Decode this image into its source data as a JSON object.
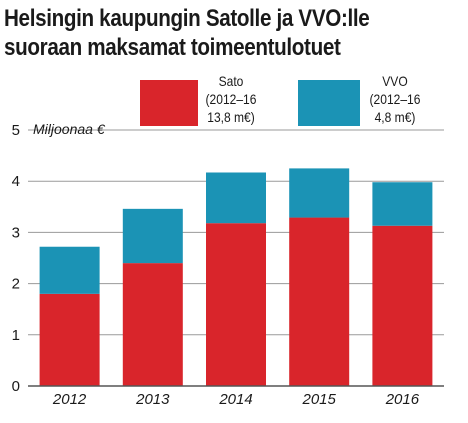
{
  "title_lines": [
    "Helsingin kaupungin Satolle ja VVO:lle",
    "suoraan maksamat toimeentulotuet"
  ],
  "colors": {
    "sato": "#d9252b",
    "vvo": "#1b93b5"
  },
  "legend": [
    {
      "lines": [
        "Sato",
        "(2012–16",
        "13,8 m€)"
      ],
      "color": "#d9252b"
    },
    {
      "lines": [
        "VVO",
        "(2012–16",
        "4,8 m€)"
      ],
      "color": "#1b93b5"
    }
  ],
  "chart_data": {
    "type": "bar",
    "stacked": true,
    "ylabel": "Miljoonaa €",
    "ylim": [
      0,
      5
    ],
    "yticks": [
      "0",
      "1",
      "2",
      "3",
      "4",
      "5"
    ],
    "grid": true,
    "categories": [
      "2012",
      "2013",
      "2014",
      "2015",
      "2016"
    ],
    "series": [
      {
        "name": "Sato",
        "values": [
          1.8,
          2.4,
          3.18,
          3.29,
          3.13
        ]
      },
      {
        "name": "VVO",
        "values": [
          0.92,
          1.06,
          0.99,
          0.96,
          0.85
        ]
      }
    ]
  }
}
